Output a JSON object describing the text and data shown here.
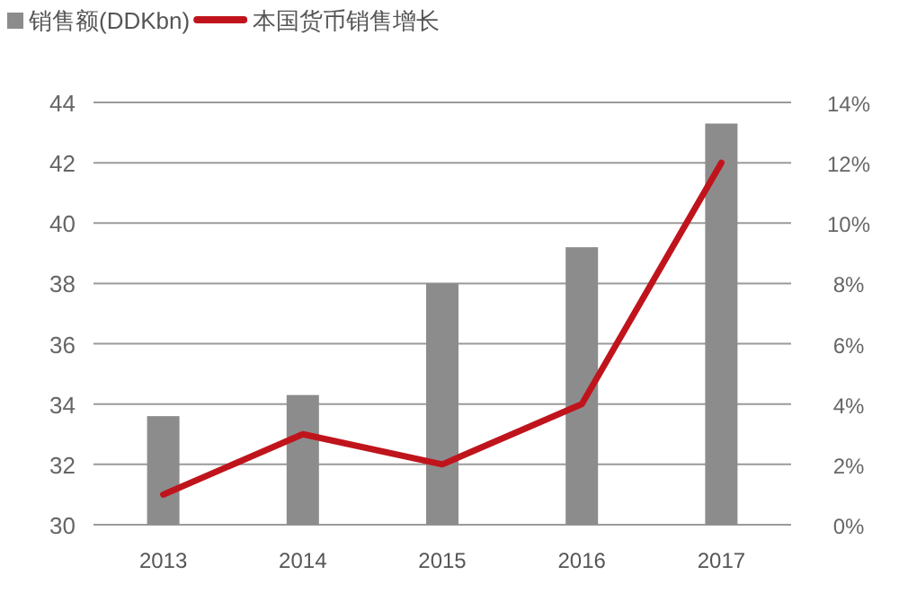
{
  "chart_data": {
    "type": "bar",
    "categories": [
      "2013",
      "2014",
      "2015",
      "2016",
      "2017"
    ],
    "series": [
      {
        "name": "销售额(DDKbn)",
        "color": "#8c8c8c",
        "values": [
          33.6,
          34.3,
          38,
          39.2,
          43.3
        ]
      },
      {
        "name": "本国货币销售增长",
        "type": "line",
        "axis": "y2",
        "color": "#c0141c",
        "values": [
          1,
          3,
          2,
          4,
          12
        ]
      }
    ],
    "ylim": [
      30,
      44
    ],
    "yticks": [
      30,
      32,
      34,
      36,
      38,
      40,
      42,
      44
    ],
    "y2lim": [
      0,
      14
    ],
    "y2ticks": [
      {
        "value": 0,
        "label": "0%"
      },
      {
        "value": 2,
        "label": "2%"
      },
      {
        "value": 4,
        "label": "4%"
      },
      {
        "value": 6,
        "label": "6%"
      },
      {
        "value": 8,
        "label": "8%"
      },
      {
        "value": 10,
        "label": "10%"
      },
      {
        "value": 12,
        "label": "12%"
      },
      {
        "value": 14,
        "label": "14%"
      }
    ],
    "grid": "y",
    "legend": "top left",
    "marker": "none",
    "line_style": "solid"
  }
}
